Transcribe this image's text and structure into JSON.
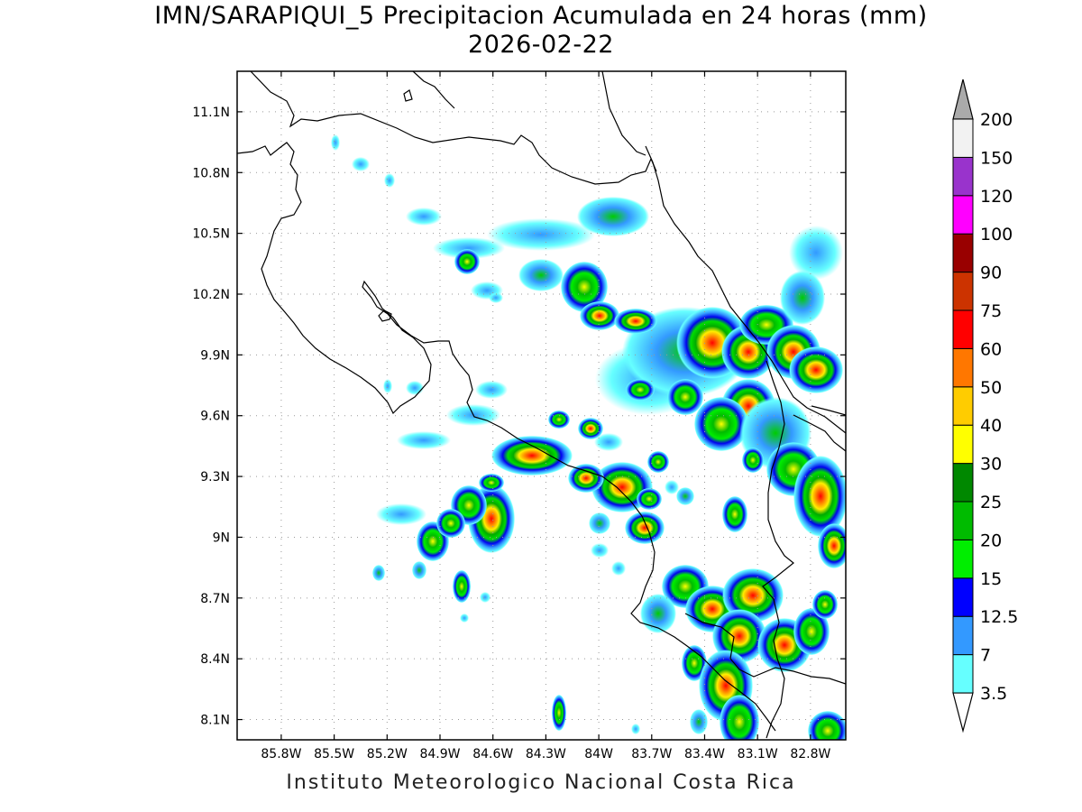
{
  "header": {
    "title": "IMN/SARAPIQUI_5 Precipitacion Acumulada en 24 horas (mm)",
    "date": "2026-02-22"
  },
  "footer": {
    "credit": "Instituto Meteorologico Nacional Costa Rica"
  },
  "map": {
    "lon_range": [
      -86.05,
      -82.6
    ],
    "lat_range": [
      8.0,
      11.3
    ],
    "lat_labels": [
      "11.1N",
      "10.8N",
      "10.5N",
      "10.2N",
      "9.9N",
      "9.6N",
      "9.3N",
      "9N",
      "8.7N",
      "8.4N",
      "8.1N"
    ],
    "lat_values": [
      11.1,
      10.8,
      10.5,
      10.2,
      9.9,
      9.6,
      9.3,
      9.0,
      8.7,
      8.4,
      8.1
    ],
    "lon_labels": [
      "85.8W",
      "85.5W",
      "85.2W",
      "84.9W",
      "84.6W",
      "84.3W",
      "84W",
      "83.7W",
      "83.4W",
      "83.1W",
      "82.8W"
    ],
    "lon_values": [
      -85.8,
      -85.5,
      -85.2,
      -84.9,
      -84.6,
      -84.3,
      -84.0,
      -83.7,
      -83.4,
      -83.1,
      -82.8
    ],
    "grid": true
  },
  "colorbar": {
    "labels": [
      "3.5",
      "7",
      "12.5",
      "15",
      "20",
      "25",
      "30",
      "40",
      "50",
      "60",
      "75",
      "90",
      "100",
      "120",
      "150",
      "200"
    ],
    "colors": [
      "#66ffff",
      "#3399ff",
      "#0000ff",
      "#00ee00",
      "#00bb00",
      "#008800",
      "#ffff00",
      "#ffcc00",
      "#ff7700",
      "#ff0000",
      "#cc3300",
      "#990000",
      "#ff00ff",
      "#9933cc",
      "#f2f2f2"
    ],
    "under_color": "#ffffff",
    "over_color": "#aaaaaa",
    "units": "mm"
  }
}
